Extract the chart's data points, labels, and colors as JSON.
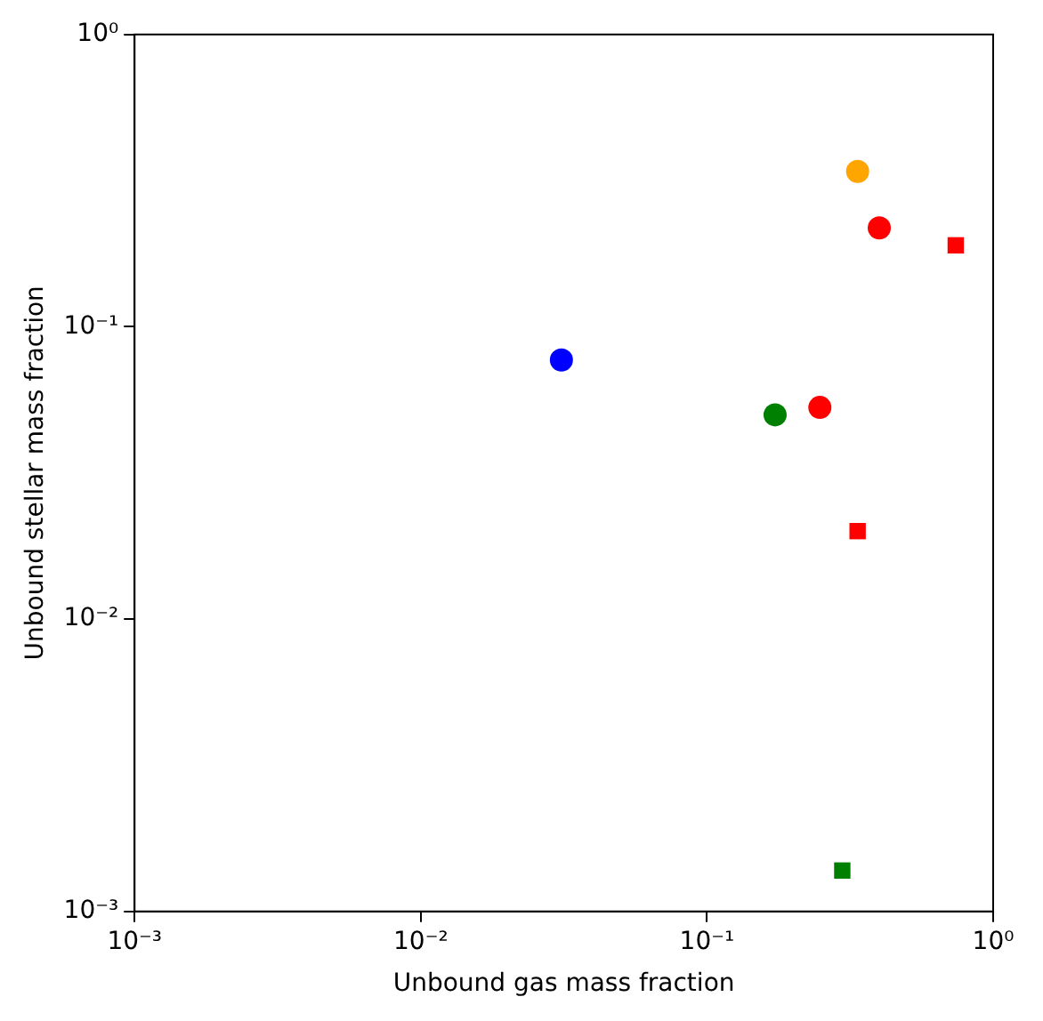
{
  "chart_data": {
    "type": "scatter",
    "xlabel": "Unbound gas mass fraction",
    "ylabel": "Unbound stellar mass fraction",
    "log": "xy",
    "grid": false,
    "legend": false,
    "xlim": [
      0.001,
      1
    ],
    "ylim": [
      0.001,
      1
    ],
    "xticks": [
      {
        "value": 0.001,
        "label": "10⁻³"
      },
      {
        "value": 0.01,
        "label": "10⁻²"
      },
      {
        "value": 0.1,
        "label": "10⁻¹"
      },
      {
        "value": 1,
        "label": "10⁰"
      }
    ],
    "yticks": [
      {
        "value": 0.001,
        "label": "10⁻³"
      },
      {
        "value": 0.01,
        "label": "10⁻²"
      },
      {
        "value": 0.1,
        "label": "10⁻¹"
      },
      {
        "value": 1,
        "label": "10⁰"
      }
    ],
    "series": [
      {
        "color": "#0000ff",
        "marker": "circle",
        "x": [
          0.031
        ],
        "values": [
          0.077
        ]
      },
      {
        "color": "#008000",
        "marker": "circle",
        "x": [
          0.173
        ],
        "values": [
          0.05
        ]
      },
      {
        "color": "#ff0000",
        "marker": "circle",
        "x": [
          0.248,
          0.4
        ],
        "values": [
          0.053,
          0.218
        ]
      },
      {
        "color": "#ffa500",
        "marker": "circle",
        "x": [
          0.336
        ],
        "values": [
          0.34
        ]
      },
      {
        "color": "#ff0000",
        "marker": "square",
        "x": [
          0.74,
          0.336
        ],
        "values": [
          0.19,
          0.02
        ]
      },
      {
        "color": "#008000",
        "marker": "square",
        "x": [
          0.297
        ],
        "values": [
          0.00138
        ]
      }
    ]
  }
}
